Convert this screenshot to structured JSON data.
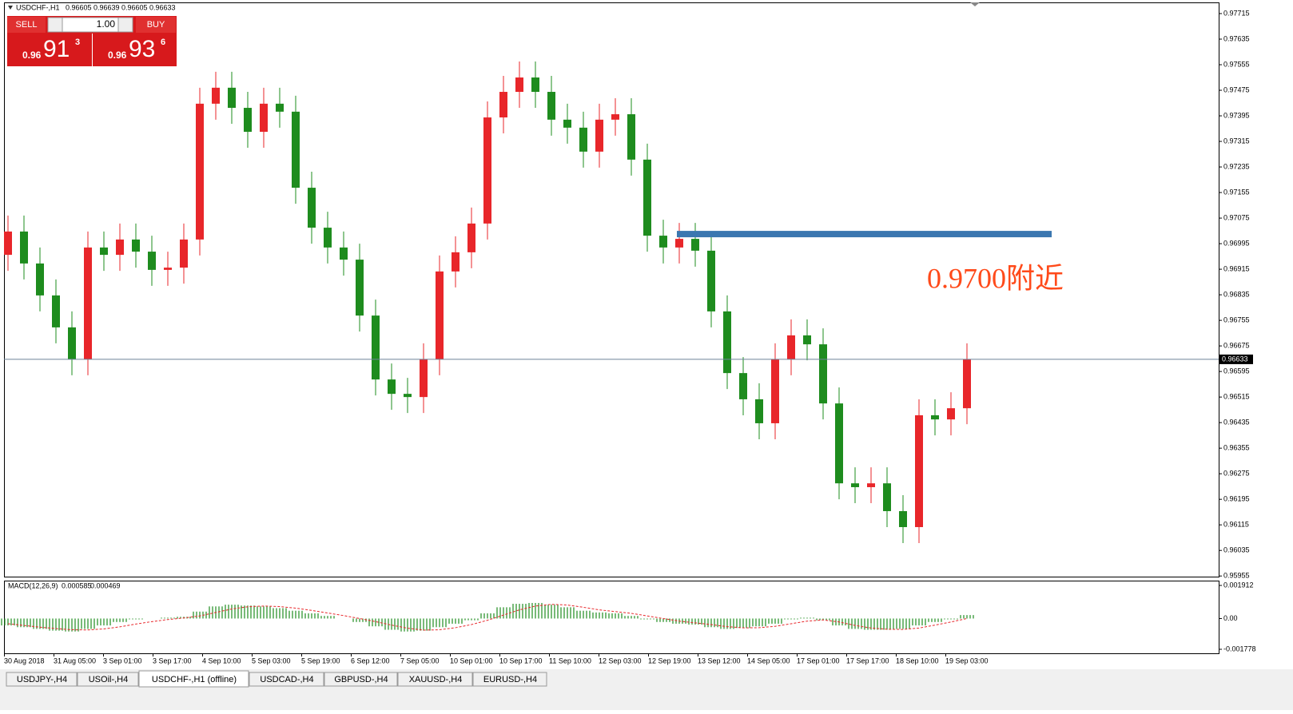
{
  "header": {
    "symbol": "USDCHF-,H1",
    "ohlc": [
      0.96605,
      0.96639,
      0.96605,
      0.96633
    ]
  },
  "trade_panel": {
    "sell": "SELL",
    "buy": "BUY",
    "lot": "1.00",
    "sell_price": {
      "big": "0.96",
      "main": "91",
      "small": "3"
    },
    "buy_price": {
      "big": "0.96",
      "main": "93",
      "small": "6"
    }
  },
  "chart_data": [
    {
      "type": "candlestick",
      "open": [
        0.9696,
        0.97033,
        0.96933,
        0.96833,
        0.96733,
        0.96633,
        0.96983,
        0.9696,
        0.97008,
        0.9697,
        0.96913,
        0.9692,
        0.97008,
        0.97433,
        0.97483,
        0.9742,
        0.97345,
        0.97433,
        0.97408,
        0.9717,
        0.97045,
        0.96983,
        0.96945,
        0.9677,
        0.9657,
        0.96525,
        0.96515,
        0.96633,
        0.96908,
        0.96968,
        0.97058,
        0.9739,
        0.9747,
        0.97515,
        0.9747,
        0.97383,
        0.97358,
        0.97283,
        0.97383,
        0.974,
        0.97258,
        0.9702,
        0.96983,
        0.9701,
        0.96973,
        0.96783,
        0.9659,
        0.96508,
        0.96433,
        0.96633,
        0.96708,
        0.9668,
        0.96495,
        0.96245,
        0.96233,
        0.96245,
        0.96158,
        0.96108,
        0.96458,
        0.96445,
        0.9648
      ],
      "high": [
        0.97083,
        0.97083,
        0.96983,
        0.96883,
        0.96783,
        0.97033,
        0.97033,
        0.97058,
        0.97058,
        0.9702,
        0.9697,
        0.97058,
        0.97483,
        0.97533,
        0.97533,
        0.9747,
        0.97483,
        0.97483,
        0.97458,
        0.9722,
        0.97095,
        0.97033,
        0.96995,
        0.9682,
        0.9662,
        0.96575,
        0.96683,
        0.96958,
        0.97018,
        0.97108,
        0.9744,
        0.9752,
        0.97565,
        0.97565,
        0.9752,
        0.97433,
        0.97408,
        0.97433,
        0.9745,
        0.9745,
        0.97308,
        0.9707,
        0.9706,
        0.9706,
        0.97023,
        0.96833,
        0.9664,
        0.96558,
        0.96683,
        0.96758,
        0.96758,
        0.9673,
        0.96545,
        0.96295,
        0.96295,
        0.96295,
        0.96208,
        0.96508,
        0.96508,
        0.9653,
        0.96683
      ],
      "low": [
        0.9691,
        0.96883,
        0.96783,
        0.96683,
        0.96583,
        0.96583,
        0.9691,
        0.9691,
        0.9692,
        0.96863,
        0.96863,
        0.9687,
        0.96958,
        0.97383,
        0.9737,
        0.97295,
        0.97295,
        0.97358,
        0.9712,
        0.96995,
        0.96933,
        0.96895,
        0.9672,
        0.9652,
        0.96475,
        0.96465,
        0.96465,
        0.96583,
        0.96858,
        0.96918,
        0.97008,
        0.9734,
        0.9742,
        0.9742,
        0.97333,
        0.97308,
        0.97233,
        0.97233,
        0.97333,
        0.97208,
        0.9697,
        0.96933,
        0.96933,
        0.96923,
        0.96733,
        0.9654,
        0.96458,
        0.96383,
        0.96383,
        0.96583,
        0.9663,
        0.96445,
        0.96195,
        0.96183,
        0.96183,
        0.96108,
        0.96058,
        0.96058,
        0.96395,
        0.96395,
        0.9643
      ],
      "close": [
        0.97033,
        0.96933,
        0.96833,
        0.96733,
        0.96633,
        0.96983,
        0.9696,
        0.97008,
        0.9697,
        0.96913,
        0.9692,
        0.97008,
        0.97433,
        0.97483,
        0.9742,
        0.97345,
        0.97433,
        0.97408,
        0.9717,
        0.97045,
        0.96983,
        0.96945,
        0.9677,
        0.9657,
        0.96525,
        0.96515,
        0.96633,
        0.96908,
        0.96968,
        0.97058,
        0.9739,
        0.9747,
        0.97515,
        0.9747,
        0.97383,
        0.97358,
        0.97283,
        0.97383,
        0.974,
        0.97258,
        0.9702,
        0.96983,
        0.9701,
        0.96973,
        0.96783,
        0.9659,
        0.96508,
        0.96433,
        0.96633,
        0.96708,
        0.9668,
        0.96495,
        0.96245,
        0.96233,
        0.96245,
        0.96158,
        0.96108,
        0.96458,
        0.96445,
        0.9648,
        0.96633
      ],
      "up_color": "#e8262a",
      "down_color": "#1e8c1e",
      "ylim": [
        0.95953,
        0.9775
      ],
      "yticks": [
        0.97715,
        0.97635,
        0.97555,
        0.97475,
        0.97395,
        0.97315,
        0.97235,
        0.97155,
        0.97075,
        0.96995,
        0.96915,
        0.96835,
        0.96755,
        0.96675,
        0.96595,
        0.96515,
        0.96435,
        0.96355,
        0.96275,
        0.96195,
        0.96115,
        0.96035,
        0.95955
      ],
      "current_price": 0.96633,
      "level": 0.97025,
      "level_color": "#3b77b0",
      "annotation": "0.9700附近",
      "annotation_color": "#ff4a1a",
      "time_labels": [
        "30 Aug 2018",
        "31 Aug 05:00",
        "3 Sep 01:00",
        "3 Sep 17:00",
        "4 Sep 10:00",
        "5 Sep 03:00",
        "5 Sep 19:00",
        "6 Sep 12:00",
        "7 Sep 05:00",
        "10 Sep 01:00",
        "10 Sep 17:00",
        "11 Sep 10:00",
        "12 Sep 03:00",
        "12 Sep 19:00",
        "13 Sep 12:00",
        "14 Sep 05:00",
        "17 Sep 01:00",
        "17 Sep 17:00",
        "18 Sep 10:00",
        "19 Sep 03:00"
      ]
    },
    {
      "type": "macd",
      "title": "MACD(12,26,9)",
      "main_value": 0.000585,
      "signal_value": 0.000469,
      "series": [
        {
          "name": "MACD",
          "color": "#1e8c1e",
          "values": [
            -0.0004,
            -0.0005,
            -0.0006,
            -0.0007,
            -0.00075,
            -0.0006,
            -0.0004,
            -0.0002,
            -5e-05,
            0,
            5e-05,
            0.0001,
            0.0004,
            0.0007,
            0.0008,
            0.00075,
            0.0007,
            0.0006,
            0.00045,
            0.0003,
            0.00015,
            0,
            -0.0002,
            -0.00045,
            -0.00065,
            -0.00075,
            -0.0007,
            -0.0005,
            -0.0003,
            -0.0001,
            0.0003,
            0.00065,
            0.00085,
            0.0009,
            0.0008,
            0.00065,
            0.00045,
            0.00035,
            0.0003,
            0.00015,
            -5e-05,
            -0.0002,
            -0.0003,
            -0.00035,
            -0.0005,
            -0.0006,
            -0.00055,
            -0.00045,
            -0.0003,
            -5e-05,
            5e-05,
            -0.0001,
            -0.0004,
            -0.0006,
            -0.00065,
            -0.00065,
            -0.0006,
            -0.0004,
            -0.0002,
            -5e-05,
            0.0002
          ]
        },
        {
          "name": "Signal",
          "color": "#e8262a",
          "values": [
            -0.0003,
            -0.0004,
            -0.0005,
            -0.00058,
            -0.00065,
            -0.00066,
            -0.0006,
            -0.00048,
            -0.00032,
            -0.00018,
            -6e-05,
            3e-05,
            0.00015,
            0.00035,
            0.00055,
            0.00068,
            0.00072,
            0.00069,
            0.0006,
            0.00047,
            0.00032,
            0.00017,
            0,
            -0.00018,
            -0.00038,
            -0.00056,
            -0.00067,
            -0.00065,
            -0.00053,
            -0.00035,
            -0.0001,
            0.0002,
            0.0005,
            0.00072,
            0.00082,
            0.00078,
            0.00065,
            0.0005,
            0.0004,
            0.0003,
            0.00015,
            0,
            -0.00015,
            -0.00025,
            -0.00035,
            -0.00047,
            -0.00054,
            -0.00053,
            -0.00045,
            -0.0003,
            -0.00015,
            -8e-05,
            -0.0002,
            -0.0004,
            -0.00055,
            -0.00062,
            -0.00063,
            -0.00055,
            -0.00038,
            -0.0002,
            0
          ]
        }
      ],
      "ylim": [
        -0.00201,
        0.00219
      ],
      "yticks": [
        0.001912,
        {
          "value": 0,
          "label": "0.00"
        },
        -0.001778
      ]
    }
  ],
  "tabs": [
    "USDJPY-,H4",
    "USOil-,H4",
    "USDCHF-,H1 (offline)",
    "USDCAD-,H4",
    "GBPUSD-,H4",
    "XAUUSD-,H4",
    "EURUSD-,H4"
  ]
}
